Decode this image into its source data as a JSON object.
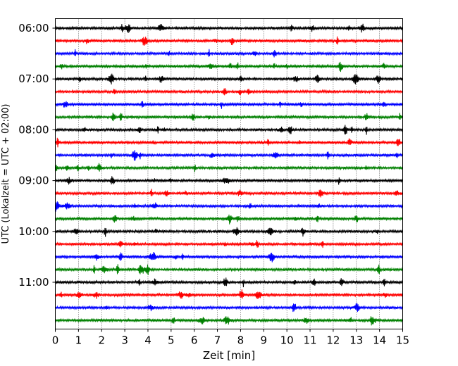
{
  "chart_data": {
    "type": "line",
    "title": "",
    "xlabel": "Zeit  [min]",
    "ylabel": "UTC (Lokalzeit = UTC + 02:00)",
    "xlim": [
      0,
      15
    ],
    "x_ticks": [
      0,
      1,
      2,
      3,
      4,
      5,
      6,
      7,
      8,
      9,
      10,
      11,
      12,
      13,
      14,
      15
    ],
    "x_tick_labels": [
      "0",
      "1",
      "2",
      "3",
      "4",
      "5",
      "6",
      "7",
      "8",
      "9",
      "10",
      "11",
      "12",
      "13",
      "14",
      "15"
    ],
    "y_tick_labels": [
      "06:00",
      "07:00",
      "08:00",
      "09:00",
      "10:00",
      "11:00"
    ],
    "trace_start_times": [
      "06:00",
      "06:15",
      "06:30",
      "06:45",
      "07:00",
      "07:15",
      "07:30",
      "07:45",
      "08:00",
      "08:15",
      "08:30",
      "08:45",
      "09:00",
      "09:15",
      "09:30",
      "09:45",
      "10:00",
      "10:15",
      "10:30",
      "10:45",
      "11:00",
      "11:15",
      "11:30",
      "11:45"
    ],
    "trace_colors": [
      "#000000",
      "#ff0000",
      "#0000ff",
      "#008000"
    ],
    "grid": {
      "x": true,
      "y": false,
      "style": "dotted"
    },
    "legend": "none"
  }
}
